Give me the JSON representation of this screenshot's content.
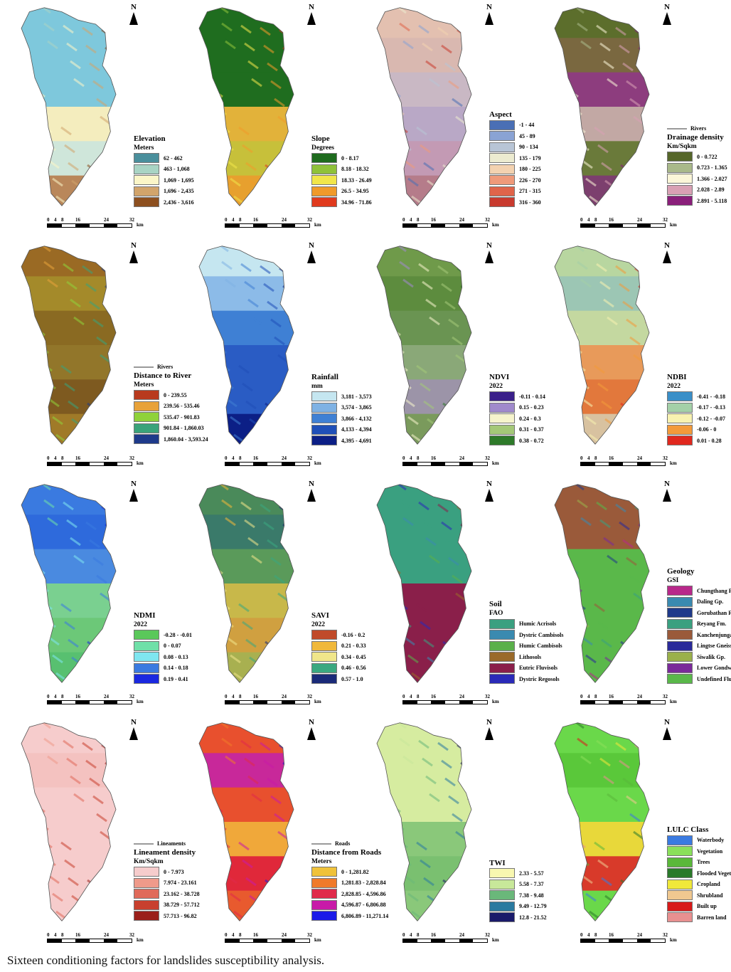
{
  "north_label": "N",
  "scale_ticks": [
    "0",
    "4",
    "8",
    "16",
    "24",
    "32"
  ],
  "scale_unit": "km",
  "caption": "Sixteen conditioning factors for landslides susceptibility analysis.",
  "panels": [
    {
      "id": "elevation",
      "title": "Elevation",
      "subtitle": "Meters",
      "line_label": "",
      "items": [
        {
          "label": "62 - 462",
          "color": "#4a8f9c"
        },
        {
          "label": "463 - 1,068",
          "color": "#a9d4c4"
        },
        {
          "label": "1,069 - 1,695",
          "color": "#fbf6c8"
        },
        {
          "label": "1,696 - 2,435",
          "color": "#d2a46b"
        },
        {
          "label": "2,436 - 3,616",
          "color": "#8d4f1f"
        }
      ],
      "fill": [
        "#7ec8dc",
        "#7ec8dc",
        "#7ec8dc",
        "#f4edbe",
        "#cfe6da",
        "#b9875a"
      ]
    },
    {
      "id": "slope",
      "title": "Slope",
      "subtitle": "Degrees",
      "line_label": "",
      "items": [
        {
          "label": "0 - 8.17",
          "color": "#1e6b1e"
        },
        {
          "label": "8.18 - 18.32",
          "color": "#8fc23a"
        },
        {
          "label": "18.33 - 26.49",
          "color": "#f1e64a"
        },
        {
          "label": "26.5 - 34.95",
          "color": "#f09a2a"
        },
        {
          "label": "34.96 - 71.86",
          "color": "#e03a1e"
        }
      ],
      "fill": [
        "#1f6d1f",
        "#1f6d1f",
        "#1f6d1f",
        "#e2b23a",
        "#c7c03a",
        "#e7a02e"
      ]
    },
    {
      "id": "aspect",
      "title": "Aspect",
      "subtitle": "",
      "line_label": "",
      "items": [
        {
          "label": "-1 - 44",
          "color": "#4a6fb5"
        },
        {
          "label": "45 - 89",
          "color": "#8aa3d4"
        },
        {
          "label": "90 - 134",
          "color": "#b8c5d6"
        },
        {
          "label": "135 - 179",
          "color": "#ecebd0"
        },
        {
          "label": "180 - 225",
          "color": "#f3d2b0"
        },
        {
          "label": "226 - 270",
          "color": "#ef9a7a"
        },
        {
          "label": "271 - 315",
          "color": "#e0644a"
        },
        {
          "label": "316 - 360",
          "color": "#c83a2e"
        }
      ],
      "fill": [
        "#e3c0b0",
        "#d9b8b0",
        "#c9b8c4",
        "#b9a8c6",
        "#c39ab4",
        "#b57c8a"
      ]
    },
    {
      "id": "drainage",
      "title": "Drainage density",
      "subtitle": "Km/Sqkm",
      "line_label": "Rivers",
      "items": [
        {
          "label": "0 - 0.722",
          "color": "#56672a"
        },
        {
          "label": "0.723 - 1.365",
          "color": "#a9b98a"
        },
        {
          "label": "1.366 - 2.027",
          "color": "#fbf6d8"
        },
        {
          "label": "2.028 - 2.89",
          "color": "#d9a0b4"
        },
        {
          "label": "2.891 - 5.118",
          "color": "#8a1f7a"
        }
      ],
      "fill": [
        "#5c6e2c",
        "#7a6840",
        "#8d3d7e",
        "#c2a8a4",
        "#6a7a3a",
        "#7c3f6e"
      ]
    },
    {
      "id": "river",
      "title": "Distance to River",
      "subtitle": "Meters",
      "line_label": "Rivers",
      "items": [
        {
          "label": "0 - 239.55",
          "color": "#b83a1e"
        },
        {
          "label": "239.56 - 535.46",
          "color": "#e8a23a"
        },
        {
          "label": "535.47 - 901.83",
          "color": "#8fd23a"
        },
        {
          "label": "901.84 - 1,860.03",
          "color": "#3aa37a"
        },
        {
          "label": "1,860.04 - 3,593.24",
          "color": "#1e3a8a"
        }
      ],
      "fill": [
        "#9a6a24",
        "#a48a2a",
        "#8a6a22",
        "#92762a",
        "#7e5a20",
        "#a07a28"
      ]
    },
    {
      "id": "rainfall",
      "title": "Rainfall",
      "subtitle": "mm",
      "line_label": "",
      "items": [
        {
          "label": "3,181 - 3,573",
          "color": "#c5e6f0"
        },
        {
          "label": "3,574 - 3,865",
          "color": "#7fb2e4"
        },
        {
          "label": "3,866 - 4,132",
          "color": "#3f80d4"
        },
        {
          "label": "4,133 - 4,394",
          "color": "#1f4fb8"
        },
        {
          "label": "4,395 - 4,691",
          "color": "#0c1f86"
        }
      ],
      "fill": [
        "#c5e6f0",
        "#8cbbe8",
        "#3f80d4",
        "#2a5cc4",
        "#2a5cc4",
        "#0c1f86"
      ]
    },
    {
      "id": "ndvi",
      "title": "NDVI",
      "subtitle": "2022",
      "line_label": "",
      "items": [
        {
          "label": "-0.11 - 0.14",
          "color": "#3a1f8a"
        },
        {
          "label": "0.15 - 0.23",
          "color": "#a08acc"
        },
        {
          "label": "0.24 - 0.3",
          "color": "#f6f4cc"
        },
        {
          "label": "0.31 - 0.37",
          "color": "#a4c878"
        },
        {
          "label": "0.38 - 0.72",
          "color": "#2e7a2a"
        }
      ],
      "fill": [
        "#6f9a4a",
        "#5d8c3e",
        "#6a9452",
        "#8aa878",
        "#9c94a8",
        "#7a9a5c"
      ]
    },
    {
      "id": "ndbi",
      "title": "NDBI",
      "subtitle": "2022",
      "line_label": "",
      "items": [
        {
          "label": "-0.41 - -0.18",
          "color": "#3a8fc8"
        },
        {
          "label": "-0.17 - -0.13",
          "color": "#a4d0a8"
        },
        {
          "label": "-0.12 - -0.07",
          "color": "#f8f2b0"
        },
        {
          "label": "-0.06 - 0",
          "color": "#f39a3a"
        },
        {
          "label": "0.01 - 0.28",
          "color": "#e0281e"
        }
      ],
      "fill": [
        "#b8d6a0",
        "#9cc6b4",
        "#c4d8a0",
        "#e89a5a",
        "#e2783c",
        "#d8c2a0"
      ]
    },
    {
      "id": "ndmi",
      "title": "NDMI",
      "subtitle": "2022",
      "line_label": "",
      "items": [
        {
          "label": "-0.28 - -0.01",
          "color": "#5ac85a"
        },
        {
          "label": "0 - 0.07",
          "color": "#6fe0a8"
        },
        {
          "label": "0.08 - 0.13",
          "color": "#7fe6f0"
        },
        {
          "label": "0.14 - 0.18",
          "color": "#3a7ae0"
        },
        {
          "label": "0.19 - 0.41",
          "color": "#1a28e0"
        }
      ],
      "fill": [
        "#3a7ae0",
        "#2e6adc",
        "#4a8ae0",
        "#7ad090",
        "#6cc878",
        "#58c070"
      ]
    },
    {
      "id": "savi",
      "title": "SAVI",
      "subtitle": "2022",
      "line_label": "",
      "items": [
        {
          "label": "-0.16 - 0.2",
          "color": "#c04a2a"
        },
        {
          "label": "0.21 - 0.33",
          "color": "#f0b83a"
        },
        {
          "label": "0.34 - 0.45",
          "color": "#f0e68a"
        },
        {
          "label": "0.46 - 0.56",
          "color": "#3aa880"
        },
        {
          "label": "0.57 - 1.0",
          "color": "#1a2a78"
        }
      ],
      "fill": [
        "#4a8a5a",
        "#3a7a6a",
        "#5a9a5a",
        "#c8b84a",
        "#d0a040",
        "#a8b050"
      ]
    },
    {
      "id": "soil",
      "title": "Soil",
      "subtitle": "FAO",
      "line_label": "",
      "items": [
        {
          "label": "Humic Acrisols",
          "color": "#3aa080"
        },
        {
          "label": "Dystric Cambisols",
          "color": "#3a8ab0"
        },
        {
          "label": "Humic Cambisols",
          "color": "#5ab04a"
        },
        {
          "label": "Lithosols",
          "color": "#9a6a2a"
        },
        {
          "label": "Eutric Fluvisols",
          "color": "#8a1f4a"
        },
        {
          "label": "Dystric Regosols",
          "color": "#2a2ab8"
        }
      ],
      "fill": [
        "#3aa080",
        "#3aa080",
        "#3aa080",
        "#8a1f4a",
        "#8a1f4a",
        "#8a1f4a"
      ]
    },
    {
      "id": "geology",
      "title": "Geology",
      "subtitle": "GSI",
      "line_label": "",
      "items": [
        {
          "label": "Chungthang Fm.",
          "color": "#b8288a"
        },
        {
          "label": "Daling Gp.",
          "color": "#3a8ab0"
        },
        {
          "label": "Gorubathan Fm.",
          "color": "#1f3a8a"
        },
        {
          "label": "Reyang Fm.",
          "color": "#3aa080"
        },
        {
          "label": "Kanchenjunga Gneiss",
          "color": "#9a5a3a"
        },
        {
          "label": "Lingtse Gneiss",
          "color": "#2a2a9a"
        },
        {
          "label": "Siwalik Gp.",
          "color": "#9ab04a"
        },
        {
          "label": "Lower Gondwana Gp.",
          "color": "#7a2a9a"
        },
        {
          "label": "Undefined Fluvial/ Aeolian",
          "color": "#5ab84a"
        }
      ],
      "fill": [
        "#9a5a3a",
        "#9a5a3a",
        "#5ab84a",
        "#5ab84a",
        "#5ab84a",
        "#5ab84a"
      ]
    },
    {
      "id": "lineament",
      "title": "Lineament density",
      "subtitle": "Km/Sqkm",
      "line_label": "Lineaments",
      "items": [
        {
          "label": "0 - 7.973",
          "color": "#f6cccc"
        },
        {
          "label": "7.974 - 23.161",
          "color": "#ef9a8a"
        },
        {
          "label": "23.162 - 38.728",
          "color": "#e06a5a"
        },
        {
          "label": "38.729 - 57.712",
          "color": "#c8402e"
        },
        {
          "label": "57.713 - 96.82",
          "color": "#9a1f1a"
        }
      ],
      "fill": [
        "#f6cccc",
        "#f4c2c0",
        "#f6cccc",
        "#f6cccc",
        "#f6cccc",
        "#f6cccc"
      ]
    },
    {
      "id": "roads",
      "title": "Distance from Roads",
      "subtitle": "Meters",
      "line_label": "Roads",
      "items": [
        {
          "label": "0 - 1,281.82",
          "color": "#f0c23a"
        },
        {
          "label": "1,281.83 - 2,828.84",
          "color": "#f07a2a"
        },
        {
          "label": "2,828.85 - 4,596.86",
          "color": "#e02a4a"
        },
        {
          "label": "4,596.87 - 6,806.88",
          "color": "#c81aa8"
        },
        {
          "label": "6,806.89 - 11,271.14",
          "color": "#1a1ae8"
        }
      ],
      "fill": [
        "#e8502e",
        "#c8289a",
        "#e8502e",
        "#f0a83a",
        "#e0283a",
        "#e85a2e"
      ]
    },
    {
      "id": "twi",
      "title": "TWI",
      "subtitle": "",
      "line_label": "",
      "items": [
        {
          "label": "2.33 - 5.57",
          "color": "#f8f7b0"
        },
        {
          "label": "5.58 - 7.37",
          "color": "#c8e89a"
        },
        {
          "label": "7.38 - 9.48",
          "color": "#6ab87a"
        },
        {
          "label": "9.49 - 12.79",
          "color": "#2a7aa0"
        },
        {
          "label": "12.8 - 21.52",
          "color": "#1a1a6a"
        }
      ],
      "fill": [
        "#d6eca0",
        "#d6eca0",
        "#d6eca0",
        "#8ac87a",
        "#7ac070",
        "#8ac87a"
      ]
    },
    {
      "id": "lulc",
      "title": "LULC Class",
      "subtitle": "",
      "line_label": "",
      "items": [
        {
          "label": "Waterbody",
          "color": "#3a7ae0"
        },
        {
          "label": "Vegetation",
          "color": "#8ae05a"
        },
        {
          "label": "Trees",
          "color": "#5ab83a"
        },
        {
          "label": "Flooded Vegetation",
          "color": "#2a7a2a"
        },
        {
          "label": "Cropland",
          "color": "#f0e83a"
        },
        {
          "label": "Shrubland",
          "color": "#f0c890"
        },
        {
          "label": "Built up",
          "color": "#d81a1a"
        },
        {
          "label": "Barren land",
          "color": "#e89090"
        }
      ],
      "fill": [
        "#6ad84a",
        "#5ac83a",
        "#6ad84a",
        "#e8d83a",
        "#d83a2a",
        "#6ad84a"
      ]
    }
  ]
}
